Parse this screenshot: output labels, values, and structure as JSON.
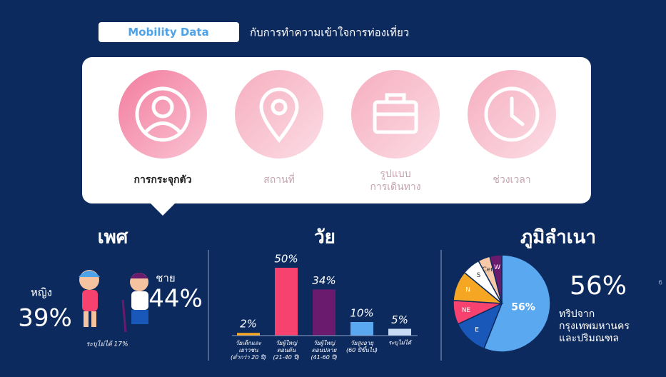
{
  "header": {
    "badge": "Mobility Data",
    "subtitle": "กับการทำความเข้าใจการท่องเที่ยว"
  },
  "tabs": [
    {
      "label": "การกระจุกตัว"
    },
    {
      "label": "สถานที่"
    },
    {
      "label": "รูปแบบ\nการเดินทาง"
    },
    {
      "label": "ช่วงเวลา"
    }
  ],
  "gender": {
    "title": "เพศ",
    "female_label": "หญิง",
    "female_value": "39%",
    "male_label": "ชาย",
    "male_value": "44%",
    "note": "ระบุไม่ได้ 17%"
  },
  "chart_data": [
    {
      "type": "bar",
      "title": "วัย",
      "categories": [
        "วัยเด็กและ\nเยาวชน\n(ต่ำกว่า 20 ปี)",
        "วัยผู้ใหญ่\nตอนต้น\n(21-40 ปี)",
        "วัยผู้ใหญ่\nตอนปลาย\n(41-60 ปี)",
        "วัยสูงอายุ\n(60 ปีขึ้นไป)",
        "ระบุไม่ได้"
      ],
      "values": [
        2,
        50,
        34,
        10,
        5
      ],
      "value_labels": [
        "2%",
        "50%",
        "34%",
        "10%",
        "5%"
      ],
      "colors": [
        "#f5a623",
        "#f7426f",
        "#6a1b6e",
        "#5aa8f0",
        "#c9dcf5"
      ]
    },
    {
      "type": "pie",
      "title": "ภูมิลำเนา",
      "categories": [
        null,
        "E",
        "NE",
        "N",
        "S",
        "Cen",
        "W"
      ],
      "values": [
        56,
        12,
        8,
        10,
        6,
        4,
        4
      ],
      "value_labels": [
        "56%",
        null,
        null,
        null,
        null,
        null,
        null
      ],
      "colors": [
        "#5aa8f0",
        "#1957b8",
        "#f7426f",
        "#f5a623",
        "#ffffff",
        "#f7c9a8",
        "#6a1b6e"
      ],
      "annotation": {
        "value_label": "56%",
        "text": "ทริปจาก\nกรุงเทพมหานคร\nและปริมณฑล"
      }
    }
  ],
  "page_number": "6"
}
